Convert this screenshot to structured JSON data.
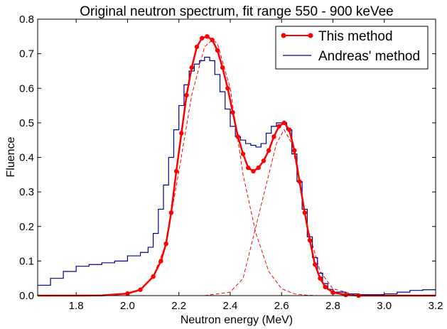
{
  "chart_data": {
    "type": "line",
    "title": "Original neutron spectrum, fit range 550 - 900 keVee",
    "xlabel": "Neutron energy (MeV)",
    "ylabel": "Fluence",
    "xlim": [
      1.65,
      3.2
    ],
    "ylim": [
      0.0,
      0.8
    ],
    "xticks": [
      "1.8",
      "2.0",
      "2.2",
      "2.4",
      "2.6",
      "2.8",
      "3.0",
      "3.2"
    ],
    "yticks": [
      "0.0",
      "0.1",
      "0.2",
      "0.3",
      "0.4",
      "0.5",
      "0.6",
      "0.7",
      "0.8"
    ],
    "grid": false,
    "legend": {
      "position": "top-right"
    },
    "series": [
      {
        "name": "This method",
        "color": "#ff0000",
        "style": "line-with-dot-markers",
        "x": [
          1.65,
          1.8,
          1.9,
          2.0,
          2.05,
          2.1,
          2.13,
          2.15,
          2.17,
          2.19,
          2.21,
          2.23,
          2.25,
          2.27,
          2.29,
          2.31,
          2.33,
          2.35,
          2.37,
          2.39,
          2.41,
          2.43,
          2.45,
          2.47,
          2.49,
          2.51,
          2.53,
          2.55,
          2.57,
          2.59,
          2.61,
          2.63,
          2.65,
          2.67,
          2.69,
          2.71,
          2.73,
          2.75,
          2.77,
          2.8,
          2.85,
          2.9,
          3.0,
          3.2
        ],
        "y": [
          0.0,
          0.0,
          0.0005,
          0.006,
          0.017,
          0.055,
          0.1,
          0.15,
          0.24,
          0.36,
          0.47,
          0.58,
          0.66,
          0.72,
          0.745,
          0.75,
          0.74,
          0.71,
          0.66,
          0.6,
          0.53,
          0.46,
          0.41,
          0.37,
          0.36,
          0.37,
          0.39,
          0.42,
          0.46,
          0.49,
          0.5,
          0.48,
          0.42,
          0.33,
          0.24,
          0.16,
          0.09,
          0.05,
          0.025,
          0.009,
          0.002,
          0.0,
          0.0,
          0.0
        ]
      },
      {
        "name": "Andreas' method",
        "color": "#00008b",
        "style": "step",
        "x": [
          1.65,
          1.7,
          1.75,
          1.8,
          1.85,
          1.9,
          1.95,
          2.0,
          2.05,
          2.08,
          2.1,
          2.12,
          2.14,
          2.16,
          2.18,
          2.2,
          2.22,
          2.24,
          2.26,
          2.28,
          2.3,
          2.32,
          2.34,
          2.36,
          2.38,
          2.4,
          2.42,
          2.44,
          2.46,
          2.48,
          2.5,
          2.52,
          2.54,
          2.56,
          2.58,
          2.6,
          2.62,
          2.64,
          2.66,
          2.68,
          2.7,
          2.72,
          2.74,
          2.76,
          2.78,
          2.8,
          2.85,
          2.9,
          2.95,
          3.0,
          3.05,
          3.1,
          3.15,
          3.2
        ],
        "y": [
          0.03,
          0.05,
          0.07,
          0.085,
          0.09,
          0.095,
          0.1,
          0.115,
          0.125,
          0.14,
          0.18,
          0.25,
          0.32,
          0.4,
          0.48,
          0.55,
          0.61,
          0.65,
          0.67,
          0.68,
          0.69,
          0.68,
          0.64,
          0.59,
          0.54,
          0.49,
          0.46,
          0.45,
          0.44,
          0.435,
          0.43,
          0.44,
          0.47,
          0.49,
          0.5,
          0.5,
          0.48,
          0.41,
          0.33,
          0.25,
          0.17,
          0.11,
          0.065,
          0.035,
          0.018,
          0.01,
          0.005,
          0.003,
          0.003,
          0.005,
          0.01,
          0.015,
          0.017,
          0.017
        ]
      },
      {
        "name": "",
        "color": "#ff0000",
        "style": "dashed",
        "x": [
          1.65,
          1.9,
          2.0,
          2.05,
          2.1,
          2.15,
          2.2,
          2.25,
          2.3,
          2.33,
          2.35,
          2.4,
          2.45,
          2.5,
          2.55,
          2.6,
          2.65,
          2.7,
          2.75
        ],
        "y": [
          0.0,
          0.0005,
          0.006,
          0.017,
          0.055,
          0.15,
          0.36,
          0.58,
          0.72,
          0.74,
          0.73,
          0.6,
          0.35,
          0.18,
          0.07,
          0.02,
          0.005,
          0.001,
          0.0
        ]
      },
      {
        "name": "",
        "color": "#ff0000",
        "style": "dashed",
        "x": [
          2.3,
          2.4,
          2.45,
          2.5,
          2.55,
          2.58,
          2.61,
          2.64,
          2.67,
          2.7,
          2.75,
          2.8,
          2.9,
          3.2
        ],
        "y": [
          0.0,
          0.01,
          0.05,
          0.2,
          0.35,
          0.44,
          0.48,
          0.44,
          0.33,
          0.2,
          0.07,
          0.02,
          0.0,
          0.0
        ]
      }
    ]
  }
}
